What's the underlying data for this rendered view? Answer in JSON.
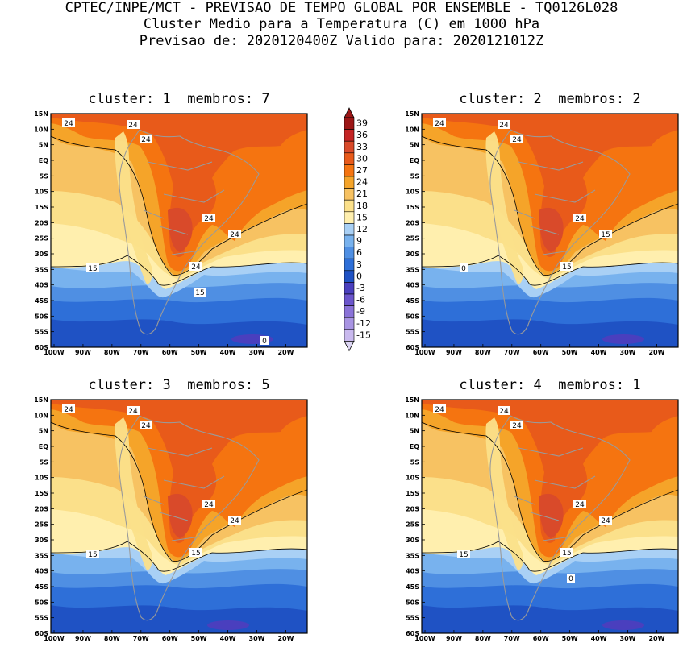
{
  "header": {
    "line1": "CPTEC/INPE/MCT - PREVISAO DE TEMPO GLOBAL POR ENSEMBLE - TQ0126L028",
    "line2": "Cluster Medio para a Temperatura (C) em 1000 hPa",
    "line3": "Previsao de: 2020120400Z   Valido para: 2020121012Z"
  },
  "colorbar": {
    "levels": [
      "39",
      "36",
      "33",
      "30",
      "27",
      "24",
      "21",
      "18",
      "15",
      "12",
      "9",
      "6",
      "3",
      "0",
      "-3",
      "-6",
      "-9",
      "-12",
      "-15"
    ],
    "colors": [
      "#9c1616",
      "#c42525",
      "#d94a2a",
      "#e85a1a",
      "#f57410",
      "#f5a429",
      "#f7c262",
      "#fbe08a",
      "#ffefae",
      "#a9d0f5",
      "#78b2ee",
      "#4f8fe3",
      "#2e6fd8",
      "#1f52c4",
      "#4a3fbe",
      "#6b55cc",
      "#8a72d8",
      "#a894e3",
      "#c9b9ee"
    ]
  },
  "axes": {
    "lat_labels": [
      "15N",
      "10N",
      "5N",
      "EQ",
      "5S",
      "10S",
      "15S",
      "20S",
      "25S",
      "30S",
      "35S",
      "40S",
      "45S",
      "50S",
      "55S",
      "60S"
    ],
    "lon_labels": [
      "100W",
      "90W",
      "80W",
      "70W",
      "60W",
      "50W",
      "40W",
      "30W",
      "20W"
    ]
  },
  "panels": [
    {
      "cluster_label": "cluster: 1",
      "members_label": "membros: 7",
      "contour_labels": [
        "24",
        "24",
        "24",
        "24",
        "24",
        "24",
        "15",
        "15",
        "0"
      ]
    },
    {
      "cluster_label": "cluster: 2",
      "members_label": "membros: 2",
      "contour_labels": [
        "24",
        "24",
        "24",
        "24",
        "15",
        "15",
        "0"
      ]
    },
    {
      "cluster_label": "cluster: 3",
      "members_label": "membros: 5",
      "contour_labels": [
        "24",
        "24",
        "24",
        "24",
        "24",
        "15",
        "15"
      ]
    },
    {
      "cluster_label": "cluster: 4",
      "members_label": "membros: 1",
      "contour_labels": [
        "24",
        "24",
        "24",
        "24",
        "24",
        "15",
        "15",
        "0"
      ]
    }
  ]
}
